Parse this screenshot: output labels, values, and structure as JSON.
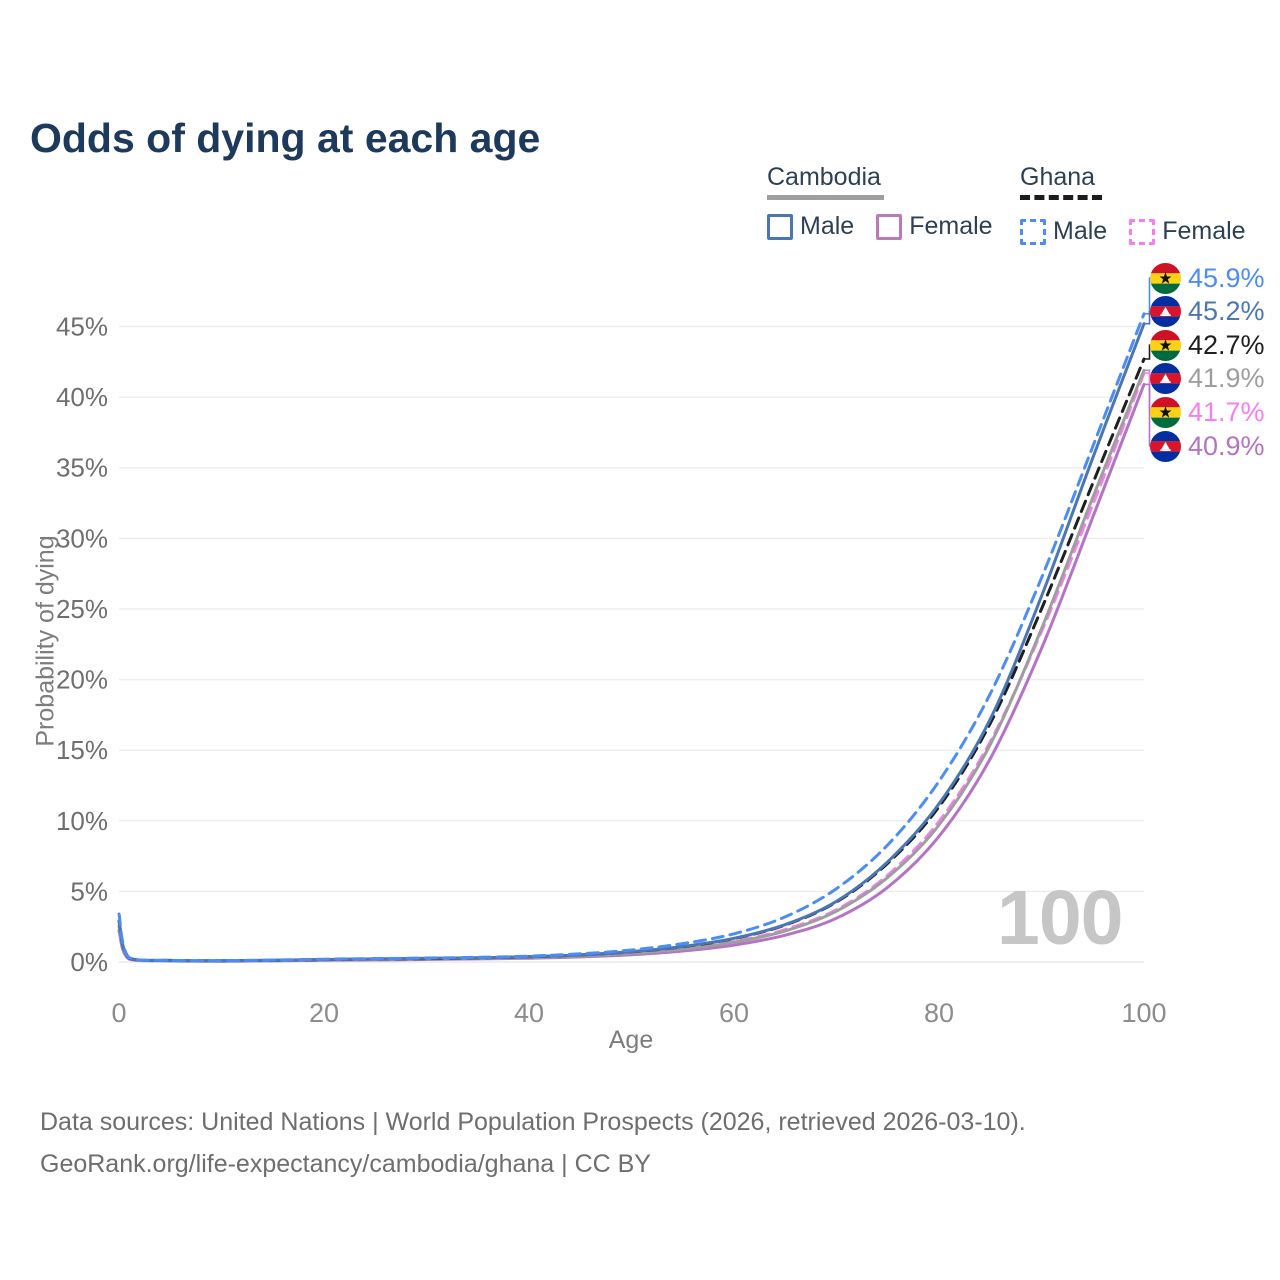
{
  "title": "Odds of dying at each age",
  "legend": {
    "cambodia": {
      "label": "Cambodia",
      "male": "Male",
      "female": "Female",
      "underline_color": "#9e9e9e",
      "male_color": "#4a77b4",
      "female_color": "#bc79b9"
    },
    "ghana": {
      "label": "Ghana",
      "male": "Male",
      "female": "Female",
      "underline_color": "#1c1c1c",
      "male_color": "#4c8df5",
      "female_color": "#f87df0"
    }
  },
  "axes": {
    "x_label": "Age",
    "y_label": "Probability of dying",
    "x_ticks": [
      0,
      20,
      40,
      60,
      80,
      100
    ],
    "y_ticks": [
      0,
      5,
      10,
      15,
      20,
      25,
      30,
      35,
      40,
      45
    ],
    "y_tick_suffix": "%"
  },
  "watermark": "100",
  "footer": {
    "line1": "Data sources: United Nations | World Population Prospects (2026, retrieved 2026-03-10).",
    "line2": "GeoRank.org/life-expectancy/cambodia/ghana | CC BY"
  },
  "flags": {
    "ghana": {
      "top": "#ce1126",
      "mid": "#fcd116",
      "bottom": "#006b3f",
      "emblem": "#111111"
    },
    "cambodia": {
      "top": "#032ea1",
      "mid": "#d8152a",
      "bottom": "#032ea1",
      "emblem": "#ffffff"
    }
  },
  "chart_data": {
    "type": "line",
    "title": "Odds of dying at each age",
    "xlabel": "Age",
    "ylabel": "Probability of dying",
    "xlim": [
      0,
      100
    ],
    "ylim": [
      0,
      47
    ],
    "grid": "horizontal",
    "legend_position": "top-right",
    "x": [
      0,
      1,
      5,
      10,
      15,
      20,
      25,
      30,
      35,
      40,
      45,
      50,
      55,
      60,
      65,
      70,
      75,
      80,
      85,
      90,
      95,
      100
    ],
    "series": [
      {
        "id": "ghana-male",
        "name": "Ghana Male",
        "country": "ghana",
        "sex": "male",
        "style": "dashed",
        "color": "#4c8df5",
        "end_label": "45.9%",
        "end_value": 45.9,
        "values": [
          3.4,
          0.3,
          0.12,
          0.1,
          0.14,
          0.2,
          0.24,
          0.28,
          0.33,
          0.42,
          0.58,
          0.85,
          1.3,
          2.0,
          3.2,
          5.2,
          8.3,
          12.8,
          19.0,
          27.2,
          36.5,
          45.9
        ]
      },
      {
        "id": "cambodia-male",
        "name": "Cambodia Male",
        "country": "cambodia",
        "sex": "male",
        "style": "solid",
        "color": "#4a77b4",
        "end_label": "45.2%",
        "end_value": 45.2,
        "values": [
          2.9,
          0.28,
          0.1,
          0.08,
          0.12,
          0.18,
          0.22,
          0.26,
          0.3,
          0.37,
          0.5,
          0.73,
          1.1,
          1.68,
          2.65,
          4.3,
          7.1,
          11.2,
          17.2,
          25.9,
          35.7,
          45.2
        ]
      },
      {
        "id": "ghana-both",
        "name": "Ghana Both sexes",
        "country": "ghana",
        "sex": "both",
        "style": "dashed",
        "color": "#1f1f1f",
        "end_label": "42.7%",
        "end_value": 42.7,
        "values": [
          2.9,
          0.27,
          0.11,
          0.09,
          0.12,
          0.17,
          0.21,
          0.24,
          0.29,
          0.37,
          0.5,
          0.72,
          1.08,
          1.66,
          2.62,
          4.25,
          7.0,
          11.0,
          16.9,
          25.0,
          33.9,
          42.7
        ]
      },
      {
        "id": "cambodia-both",
        "name": "Cambodia Both sexes",
        "country": "cambodia",
        "sex": "both",
        "style": "solid",
        "color": "#9e9e9e",
        "end_label": "41.9%",
        "end_value": 41.9,
        "values": [
          2.5,
          0.24,
          0.09,
          0.07,
          0.1,
          0.15,
          0.18,
          0.21,
          0.25,
          0.31,
          0.42,
          0.61,
          0.91,
          1.4,
          2.2,
          3.6,
          6.0,
          9.7,
          15.4,
          23.6,
          32.9,
          41.9
        ]
      },
      {
        "id": "ghana-female",
        "name": "Ghana Female",
        "country": "ghana",
        "sex": "female",
        "style": "dashed",
        "color": "#f87df0",
        "end_label": "41.7%",
        "end_value": 41.7,
        "values": [
          2.6,
          0.24,
          0.1,
          0.08,
          0.1,
          0.14,
          0.17,
          0.21,
          0.25,
          0.32,
          0.43,
          0.62,
          0.93,
          1.45,
          2.3,
          3.7,
          6.15,
          9.95,
          15.6,
          23.4,
          32.4,
          41.7
        ]
      },
      {
        "id": "cambodia-female",
        "name": "Cambodia Female",
        "country": "cambodia",
        "sex": "female",
        "style": "solid",
        "color": "#b473c4",
        "end_label": "40.9%",
        "end_value": 40.9,
        "values": [
          2.2,
          0.2,
          0.08,
          0.06,
          0.08,
          0.12,
          0.15,
          0.18,
          0.22,
          0.27,
          0.36,
          0.52,
          0.78,
          1.2,
          1.9,
          3.1,
          5.3,
          8.9,
          14.4,
          22.2,
          31.5,
          40.9
        ]
      }
    ]
  }
}
